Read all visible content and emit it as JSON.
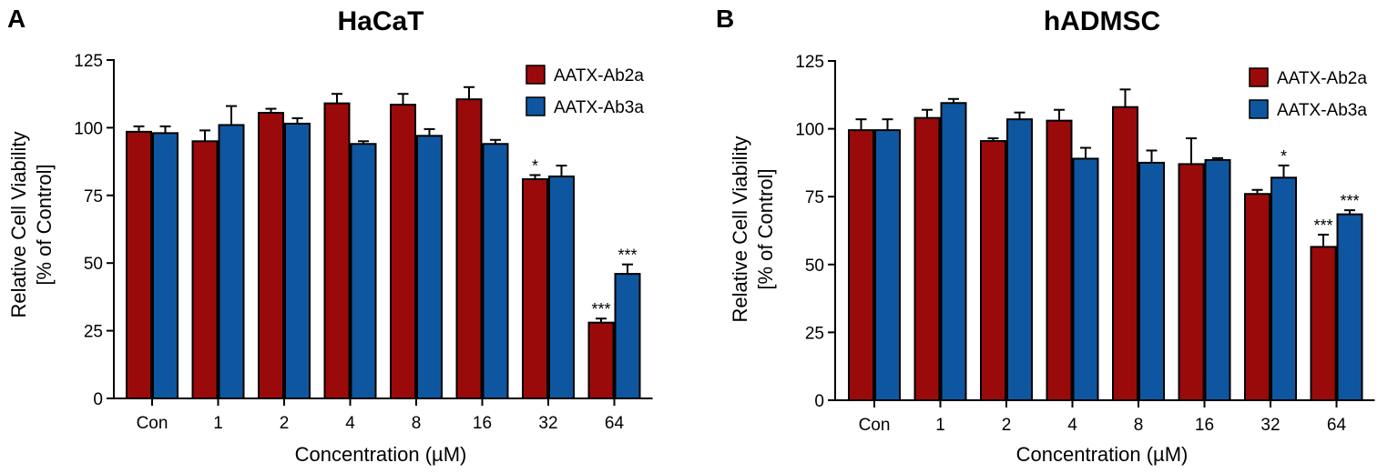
{
  "chart_data": [
    {
      "panel": "A",
      "type": "bar",
      "title": "HaCaT",
      "xlabel": "Concentration (µM)",
      "ylabel_line1": "Relative Cell  Viability",
      "ylabel_line2": "[% of Control]",
      "ylim": [
        0,
        125
      ],
      "yticks": [
        0,
        25,
        50,
        75,
        100,
        125
      ],
      "categories": [
        "Con",
        "1",
        "2",
        "4",
        "8",
        "16",
        "32",
        "64"
      ],
      "legend_position": "top-right",
      "series": [
        {
          "name": "AATX-Ab2a",
          "color": "#9b0a0a",
          "values": [
            98.5,
            95,
            105.5,
            109,
            108.5,
            110.5,
            81,
            28
          ],
          "errors": [
            2,
            4,
            1.5,
            3.5,
            4,
            4.5,
            1.5,
            1.5
          ],
          "significance": [
            "",
            "",
            "",
            "",
            "",
            "",
            "*",
            "***"
          ]
        },
        {
          "name": "AATX-Ab3a",
          "color": "#0f56a0",
          "values": [
            98,
            101,
            101.5,
            94,
            97,
            94,
            82,
            46
          ],
          "errors": [
            2.5,
            7,
            2,
            1,
            2.5,
            1.5,
            4,
            3.5
          ],
          "significance": [
            "",
            "",
            "",
            "",
            "",
            "",
            "",
            "***"
          ]
        }
      ]
    },
    {
      "panel": "B",
      "type": "bar",
      "title": "hADMSC",
      "xlabel": "Concentration (µM)",
      "ylabel_line1": "Relative Cell  Viability",
      "ylabel_line2": "[% of Control]",
      "ylim": [
        0,
        125
      ],
      "yticks": [
        0,
        25,
        50,
        75,
        100,
        125
      ],
      "categories": [
        "Con",
        "1",
        "2",
        "4",
        "8",
        "16",
        "32",
        "64"
      ],
      "legend_position": "top-right",
      "series": [
        {
          "name": "AATX-Ab2a",
          "color": "#9b0a0a",
          "values": [
            99.5,
            104,
            95.5,
            103,
            108,
            87,
            76,
            56.5
          ],
          "errors": [
            4,
            3,
            1,
            4,
            6.5,
            9.5,
            1.5,
            4.5
          ],
          "significance": [
            "",
            "",
            "",
            "",
            "",
            "",
            "",
            "***"
          ]
        },
        {
          "name": "AATX-Ab3a",
          "color": "#0f56a0",
          "values": [
            99.5,
            109.5,
            103.5,
            89,
            87.5,
            88.5,
            82,
            68.5
          ],
          "errors": [
            4,
            1.5,
            2.5,
            4,
            4.5,
            0.7,
            4.5,
            1.5
          ],
          "significance": [
            "",
            "",
            "",
            "",
            "",
            "",
            "*",
            "***"
          ]
        }
      ]
    }
  ]
}
